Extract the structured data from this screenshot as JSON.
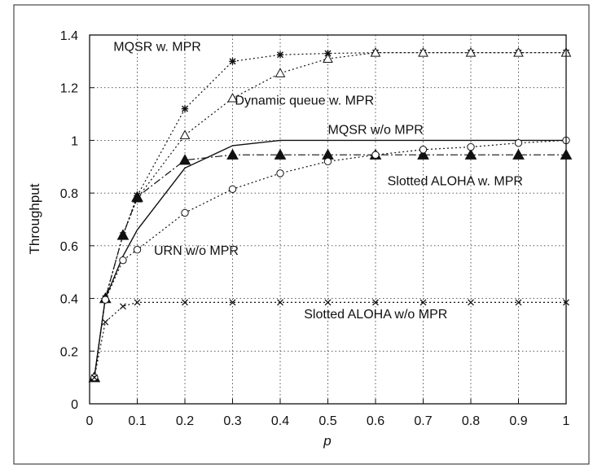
{
  "chart_data": {
    "type": "line",
    "title": "",
    "xlabel": "p",
    "ylabel": "Throughput",
    "xlim": [
      0,
      1
    ],
    "ylim": [
      0,
      1.4
    ],
    "xticks": [
      0,
      0.1,
      0.2,
      0.3,
      0.4,
      0.5,
      0.6,
      0.7,
      0.8,
      0.9,
      1
    ],
    "xtick_labels": [
      "0",
      "0.1",
      "0.2",
      "0.3",
      "0.4",
      "0.5",
      "0.6",
      "0.7",
      "0.8",
      "0.9",
      "1"
    ],
    "yticks": [
      0,
      0.2,
      0.4,
      0.6,
      0.8,
      1,
      1.2,
      1.4
    ],
    "ytick_labels": [
      "0",
      "0.2",
      "0.4",
      "0.6",
      "0.8",
      "1",
      "1.2",
      "1.4"
    ],
    "grid": true,
    "legend": "none",
    "series": [
      {
        "name": "MQSR w. MPR",
        "style": "dotted",
        "marker": "asterisk",
        "x": [
          0.01,
          0.033,
          0.07,
          0.1,
          0.2,
          0.3,
          0.4,
          0.5,
          0.6,
          0.7,
          0.8,
          0.9,
          1
        ],
        "y": [
          0.1,
          0.4,
          0.64,
          0.79,
          1.12,
          1.3,
          1.325,
          1.33,
          1.333,
          1.333,
          1.333,
          1.333,
          1.333
        ]
      },
      {
        "name": "Dynamic queue w. MPR",
        "style": "dotted",
        "marker": "triangle-open",
        "x": [
          0.01,
          0.033,
          0.07,
          0.1,
          0.2,
          0.3,
          0.4,
          0.5,
          0.6,
          0.7,
          0.8,
          0.9,
          1
        ],
        "y": [
          0.1,
          0.4,
          0.64,
          0.78,
          1.02,
          1.16,
          1.255,
          1.31,
          1.333,
          1.333,
          1.333,
          1.333,
          1.333
        ]
      },
      {
        "name": "MQSR w/o MPR",
        "style": "solid",
        "marker": "none",
        "x": [
          0.01,
          0.033,
          0.07,
          0.1,
          0.2,
          0.3,
          0.4,
          0.5,
          0.6,
          0.7,
          0.8,
          0.9,
          1
        ],
        "y": [
          0.1,
          0.4,
          0.56,
          0.66,
          0.895,
          0.98,
          1.0,
          1.0,
          1.0,
          1.0,
          1.0,
          1.0,
          1.0
        ]
      },
      {
        "name": "Slotted ALOHA w. MPR",
        "style": "dashdot",
        "marker": "triangle-filled",
        "x": [
          0.01,
          0.033,
          0.07,
          0.1,
          0.2,
          0.3,
          0.4,
          0.5,
          0.6,
          0.7,
          0.8,
          0.9,
          1
        ],
        "y": [
          0.1,
          0.4,
          0.64,
          0.785,
          0.925,
          0.945,
          0.945,
          0.945,
          0.945,
          0.945,
          0.945,
          0.945,
          0.945
        ]
      },
      {
        "name": "URN w/o MPR",
        "style": "dotted",
        "marker": "circle-open",
        "x": [
          0.01,
          0.033,
          0.07,
          0.1,
          0.2,
          0.3,
          0.4,
          0.5,
          0.6,
          0.7,
          0.8,
          0.9,
          1
        ],
        "y": [
          0.1,
          0.395,
          0.545,
          0.585,
          0.725,
          0.815,
          0.875,
          0.92,
          0.945,
          0.965,
          0.975,
          0.99,
          1.0
        ]
      },
      {
        "name": "Slotted ALOHA w/o MPR",
        "style": "dotted",
        "marker": "cross",
        "x": [
          0.01,
          0.033,
          0.07,
          0.1,
          0.2,
          0.3,
          0.4,
          0.5,
          0.6,
          0.7,
          0.8,
          0.9,
          1
        ],
        "y": [
          0.1,
          0.31,
          0.37,
          0.385,
          0.385,
          0.385,
          0.385,
          0.385,
          0.385,
          0.385,
          0.385,
          0.385,
          0.385
        ]
      }
    ],
    "annotations": [
      {
        "text": "MQSR w. MPR",
        "x": 0.05,
        "y": 1.34
      },
      {
        "text": "Dynamic queue w. MPR",
        "x": 0.305,
        "y": 1.135
      },
      {
        "text": "MQSR w/o MPR",
        "x": 0.5,
        "y": 1.025
      },
      {
        "text": "Slotted ALOHA w. MPR",
        "x": 0.625,
        "y": 0.83
      },
      {
        "text": "URN w/o MPR",
        "x": 0.135,
        "y": 0.565
      },
      {
        "text": "Slotted ALOHA w/o MPR",
        "x": 0.45,
        "y": 0.325
      }
    ]
  }
}
